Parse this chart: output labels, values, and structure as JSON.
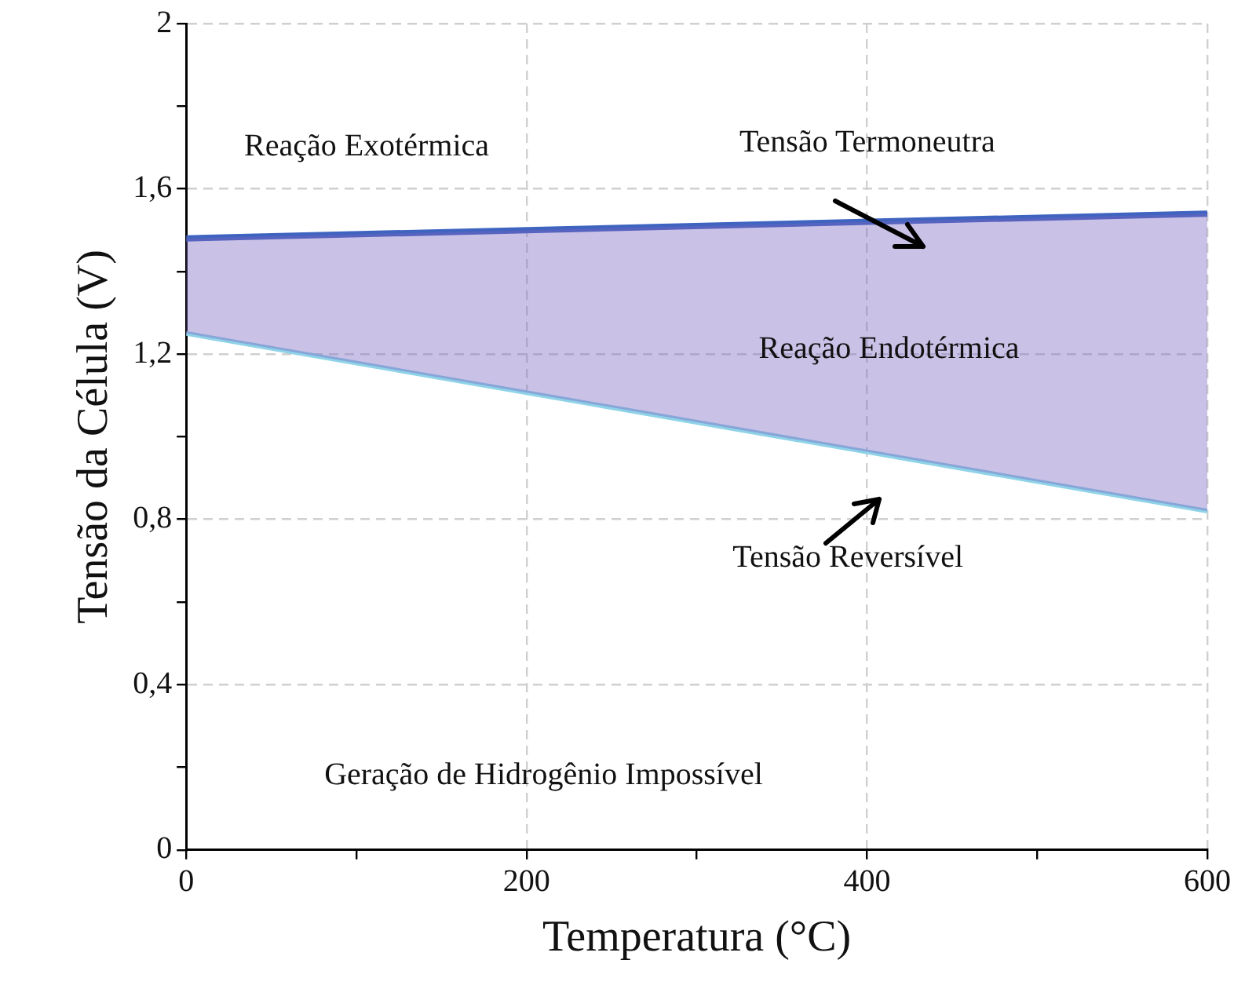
{
  "chart_data": {
    "type": "line",
    "xlabel": "Temperatura (°C)",
    "ylabel": "Tensão da Célula (V)",
    "xlim": [
      0,
      600
    ],
    "xticks": [
      0,
      {
        "value": 100,
        "label": null
      },
      200,
      {
        "value": 300,
        "label": null
      },
      400,
      {
        "value": 500,
        "label": null
      },
      600
    ],
    "ylim": [
      0,
      2
    ],
    "yticks": [
      0,
      {
        "value": 0.2,
        "label": null
      },
      {
        "value": 0.4,
        "label": "0,4"
      },
      {
        "value": 0.6,
        "label": null
      },
      {
        "value": 0.8,
        "label": "0,8"
      },
      {
        "value": 1,
        "label": null
      },
      {
        "value": 1.2,
        "label": "1,2"
      },
      {
        "value": 1.4,
        "label": null
      },
      {
        "value": 1.6,
        "label": "1,6"
      },
      {
        "value": 1.8,
        "label": null
      },
      2
    ],
    "x": [
      0,
      600
    ],
    "grid": true,
    "legend": false,
    "marker": "none",
    "line_style": "solid",
    "series": [
      {
        "name": "Tensão Termoneutra",
        "color": "#3f64c0",
        "values": [
          1.48,
          1.54
        ],
        "lower": [
          1.25,
          0.82
        ],
        "upper": [
          1.48,
          1.54
        ]
      },
      {
        "name": "Tensão Reversível",
        "color": "#8fd3e8",
        "values": [
          1.25,
          0.82
        ]
      }
    ],
    "annotations": [
      "Reação Exotérmica",
      "Reação Endotérmica",
      "Geração de Hidrogênio Impossível"
    ]
  }
}
